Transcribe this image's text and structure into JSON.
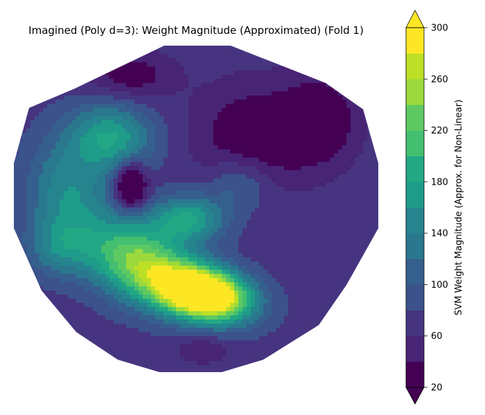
{
  "chart_data": {
    "type": "heatmap",
    "title": "Imagined (Poly d=3): Weight Magnitude (Approximated) (Fold 1)",
    "colorbar": {
      "label": "SVM Weight Magnitude (Approx. for Non-Linear)",
      "range": [
        20,
        300
      ],
      "levels": [
        20,
        40,
        60,
        80,
        100,
        120,
        140,
        160,
        180,
        200,
        220,
        240,
        260,
        280,
        300
      ],
      "ticks": [
        20,
        60,
        100,
        140,
        180,
        220,
        260,
        300
      ],
      "extend": "both",
      "colormap": "viridis"
    },
    "blobs": [
      {
        "x": 0.52,
        "y": 0.76,
        "amp": 320,
        "sx": 0.09,
        "sy": 0.055,
        "angle": 0.25
      },
      {
        "x": 0.34,
        "y": 0.66,
        "amp": 170,
        "sx": 0.11,
        "sy": 0.08,
        "angle": 0.55
      },
      {
        "x": 0.48,
        "y": 0.53,
        "amp": 110,
        "sx": 0.07,
        "sy": 0.05,
        "angle": 0.0
      },
      {
        "x": 0.27,
        "y": 0.28,
        "amp": 105,
        "sx": 0.08,
        "sy": 0.07,
        "angle": 0.3
      },
      {
        "x": 0.15,
        "y": 0.45,
        "amp": 85,
        "sx": 0.08,
        "sy": 0.12,
        "angle": 0.0
      },
      {
        "x": 0.32,
        "y": 0.43,
        "amp": -110,
        "sx": 0.03,
        "sy": 0.05,
        "angle": 0.0
      },
      {
        "x": 0.62,
        "y": 0.42,
        "amp": 45,
        "sx": 0.06,
        "sy": 0.06,
        "angle": 0.0
      },
      {
        "x": 0.12,
        "y": 0.62,
        "amp": 55,
        "sx": 0.06,
        "sy": 0.06,
        "angle": 0.0
      },
      {
        "x": 0.66,
        "y": 0.28,
        "amp": -55,
        "sx": 0.11,
        "sy": 0.11,
        "angle": 0.0
      },
      {
        "x": 0.84,
        "y": 0.23,
        "amp": -55,
        "sx": 0.07,
        "sy": 0.09,
        "angle": 0.0
      },
      {
        "x": 0.32,
        "y": 0.09,
        "amp": -45,
        "sx": 0.08,
        "sy": 0.05,
        "angle": 0.0
      },
      {
        "x": 0.52,
        "y": 0.93,
        "amp": -30,
        "sx": 0.05,
        "sy": 0.03,
        "angle": 0.0
      }
    ],
    "base_value": 70
  },
  "colors": {
    "viridis": [
      "#440154",
      "#471365",
      "#482475",
      "#463480",
      "#414487",
      "#3b528b",
      "#355f8d",
      "#2f6c8e",
      "#2a788e",
      "#25848e",
      "#21918c",
      "#1e9c89",
      "#22a884",
      "#2fb47c",
      "#44bf70",
      "#5ec962",
      "#7ad151",
      "#9bd93c",
      "#bddf26",
      "#dfe318",
      "#fde725"
    ]
  }
}
